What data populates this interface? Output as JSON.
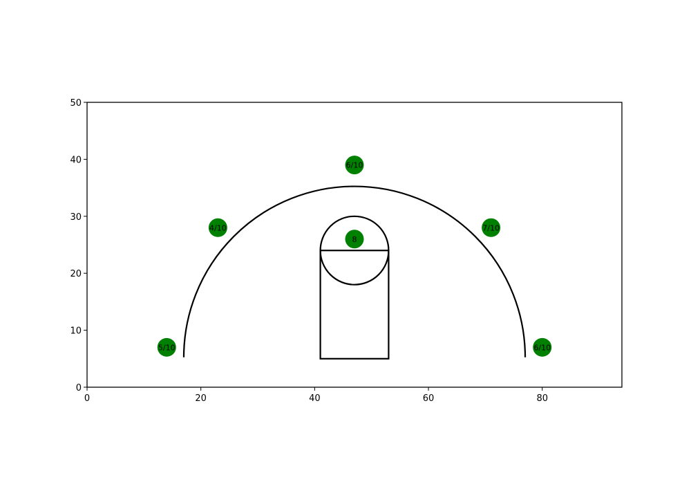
{
  "chart_data": {
    "type": "scatter",
    "title": "",
    "xlabel": "",
    "ylabel": "",
    "xlim": [
      0,
      94
    ],
    "ylim": [
      0,
      50
    ],
    "grid": false,
    "x_ticks": [
      0,
      20,
      40,
      60,
      80
    ],
    "y_ticks": [
      0,
      10,
      20,
      30,
      40,
      50
    ],
    "marker_color": "#008000",
    "line_color": "#000000",
    "points": [
      {
        "x": 14,
        "y": 7,
        "label": "5/10"
      },
      {
        "x": 23,
        "y": 28,
        "label": "4/10"
      },
      {
        "x": 47,
        "y": 39,
        "label": "6/10"
      },
      {
        "x": 47,
        "y": 26,
        "label": "8"
      },
      {
        "x": 71,
        "y": 28,
        "label": "7/10"
      },
      {
        "x": 80,
        "y": 7,
        "label": "6/10"
      }
    ],
    "court": {
      "three_point_arc": {
        "center": [
          47,
          5.25
        ],
        "radius": 30
      },
      "key": {
        "x": [
          41,
          53
        ],
        "y": [
          5,
          24
        ]
      },
      "free_throw_circle": {
        "center": [
          47,
          24
        ],
        "radius": 6
      }
    }
  }
}
